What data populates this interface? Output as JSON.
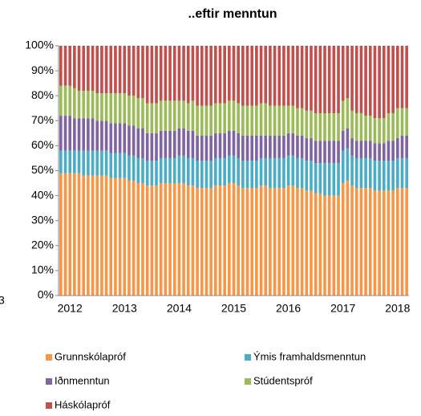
{
  "chart_data": {
    "type": "stacked_bar",
    "title": "..eftir menntun",
    "side_label": "3",
    "categories": [
      null,
      null,
      "2012",
      null,
      null,
      null,
      null,
      null,
      null,
      null,
      null,
      null,
      null,
      null,
      "2013",
      null,
      null,
      null,
      null,
      null,
      null,
      null,
      null,
      null,
      null,
      null,
      "2014",
      null,
      null,
      null,
      null,
      null,
      null,
      null,
      null,
      null,
      null,
      null,
      "2015",
      null,
      null,
      null,
      null,
      null,
      null,
      null,
      null,
      null,
      null,
      null,
      "2016",
      null,
      null,
      null,
      null,
      null,
      null,
      null,
      null,
      null,
      null,
      null,
      "2017",
      null,
      null,
      null,
      null,
      null,
      null,
      null,
      null,
      null,
      null,
      null,
      "2018",
      null,
      null
    ],
    "ylim": [
      0,
      100
    ],
    "yticks": [
      {
        "value": 0,
        "label": "0%"
      },
      {
        "value": 10,
        "label": "10%"
      },
      {
        "value": 20,
        "label": "20%"
      },
      {
        "value": 30,
        "label": "30%"
      },
      {
        "value": 40,
        "label": "40%"
      },
      {
        "value": 50,
        "label": "50%"
      },
      {
        "value": 60,
        "label": "60%"
      },
      {
        "value": 70,
        "label": "70%"
      },
      {
        "value": 80,
        "label": "80%"
      },
      {
        "value": 90,
        "label": "90%"
      },
      {
        "value": 100,
        "label": "100%"
      }
    ],
    "grid": false,
    "legend": "bottom",
    "series": [
      {
        "name": "Grunnskólapróf",
        "color": "#f79646",
        "values": [
          49,
          49,
          49,
          49,
          49,
          48,
          48,
          48,
          48,
          48,
          48,
          47,
          47,
          47,
          47,
          46,
          46,
          45,
          45,
          44,
          44,
          44,
          45,
          45,
          45,
          45,
          45,
          45,
          44,
          44,
          43,
          43,
          43,
          43,
          44,
          44,
          44,
          45,
          45,
          44,
          43,
          43,
          43,
          43,
          44,
          44,
          43,
          43,
          43,
          43,
          44,
          44,
          43,
          43,
          42,
          42,
          41,
          41,
          40,
          40,
          40,
          40,
          45,
          46,
          44,
          43,
          43,
          43,
          43,
          42,
          42,
          42,
          42,
          42,
          43,
          43,
          43
        ]
      },
      {
        "name": "Ýmis framhaldsmenntun",
        "color": "#4bacc6",
        "values": [
          9,
          9,
          9,
          9,
          9,
          10,
          10,
          10,
          10,
          10,
          10,
          10,
          10,
          10,
          10,
          10,
          10,
          10,
          10,
          10,
          10,
          10,
          10,
          10,
          10,
          10,
          11,
          11,
          11,
          11,
          11,
          11,
          11,
          11,
          11,
          11,
          11,
          11,
          11,
          11,
          11,
          11,
          11,
          11,
          11,
          11,
          12,
          12,
          12,
          12,
          12,
          12,
          12,
          12,
          12,
          12,
          12,
          12,
          13,
          13,
          13,
          13,
          13,
          13,
          12,
          12,
          12,
          12,
          12,
          12,
          12,
          12,
          12,
          12,
          12,
          12,
          12
        ]
      },
      {
        "name": "Iðnmenntun",
        "color": "#8064a2",
        "values": [
          14,
          14,
          14,
          13,
          13,
          13,
          13,
          13,
          12,
          12,
          12,
          12,
          12,
          12,
          12,
          12,
          12,
          12,
          12,
          11,
          11,
          11,
          11,
          11,
          11,
          11,
          11,
          11,
          11,
          11,
          10,
          10,
          10,
          10,
          10,
          10,
          10,
          10,
          10,
          10,
          10,
          10,
          10,
          10,
          9,
          9,
          9,
          9,
          9,
          9,
          9,
          9,
          9,
          9,
          9,
          9,
          9,
          9,
          9,
          9,
          9,
          9,
          8,
          8,
          7,
          7,
          7,
          7,
          7,
          7,
          7,
          7,
          8,
          8,
          8,
          9,
          9
        ]
      },
      {
        "name": "Stúdentspróf",
        "color": "#9bbb59",
        "values": [
          12,
          12,
          12,
          12,
          11,
          11,
          11,
          11,
          11,
          11,
          11,
          12,
          12,
          12,
          12,
          12,
          12,
          12,
          12,
          12,
          12,
          12,
          12,
          12,
          12,
          12,
          11,
          11,
          11,
          12,
          12,
          12,
          12,
          12,
          12,
          12,
          12,
          12,
          12,
          12,
          12,
          12,
          12,
          12,
          13,
          13,
          12,
          12,
          12,
          12,
          11,
          11,
          11,
          11,
          11,
          11,
          11,
          11,
          11,
          11,
          11,
          11,
          12,
          12,
          11,
          11,
          11,
          10,
          10,
          10,
          10,
          10,
          11,
          11,
          12,
          11,
          11
        ]
      },
      {
        "name": "Háskólapróf",
        "color": "#c0504d",
        "values": [
          16,
          16,
          16,
          17,
          18,
          18,
          18,
          18,
          19,
          19,
          19,
          19,
          19,
          19,
          19,
          20,
          20,
          21,
          21,
          23,
          23,
          23,
          22,
          22,
          22,
          22,
          22,
          22,
          23,
          22,
          24,
          24,
          24,
          24,
          23,
          23,
          23,
          22,
          22,
          23,
          24,
          24,
          24,
          24,
          23,
          23,
          24,
          24,
          24,
          24,
          24,
          24,
          25,
          25,
          26,
          26,
          27,
          27,
          27,
          27,
          27,
          27,
          22,
          21,
          26,
          27,
          27,
          28,
          28,
          29,
          29,
          29,
          27,
          27,
          25,
          25,
          25
        ]
      }
    ]
  }
}
